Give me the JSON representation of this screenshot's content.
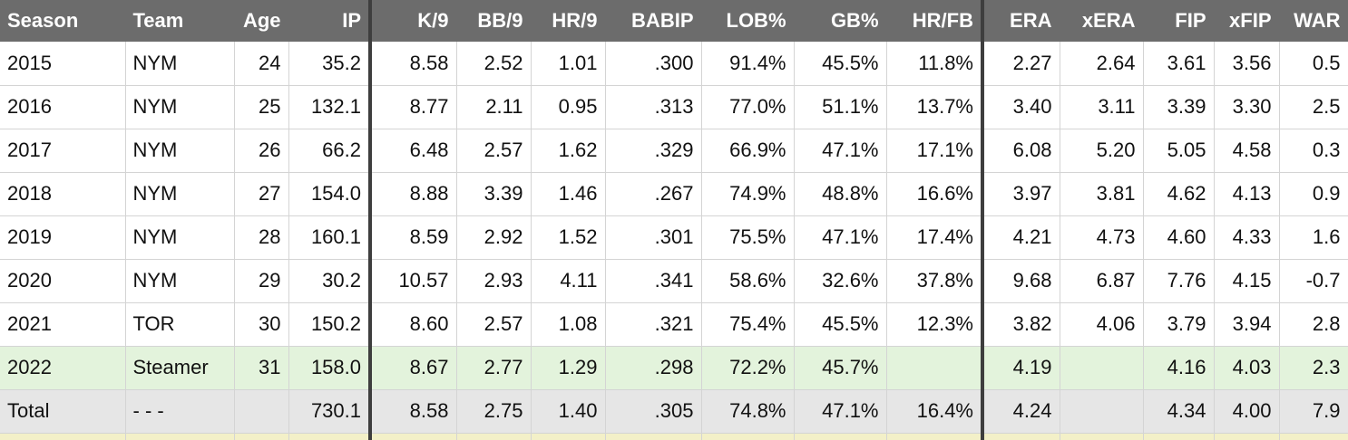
{
  "columns": [
    "Season",
    "Team",
    "Age",
    "IP",
    "K/9",
    "BB/9",
    "HR/9",
    "BABIP",
    "LOB%",
    "GB%",
    "HR/FB",
    "ERA",
    "xERA",
    "FIP",
    "xFIP",
    "WAR"
  ],
  "rows": [
    [
      "2015",
      "NYM",
      "24",
      "35.2",
      "8.58",
      "2.52",
      "1.01",
      ".300",
      "91.4%",
      "45.5%",
      "11.8%",
      "2.27",
      "2.64",
      "3.61",
      "3.56",
      "0.5"
    ],
    [
      "2016",
      "NYM",
      "25",
      "132.1",
      "8.77",
      "2.11",
      "0.95",
      ".313",
      "77.0%",
      "51.1%",
      "13.7%",
      "3.40",
      "3.11",
      "3.39",
      "3.30",
      "2.5"
    ],
    [
      "2017",
      "NYM",
      "26",
      "66.2",
      "6.48",
      "2.57",
      "1.62",
      ".329",
      "66.9%",
      "47.1%",
      "17.1%",
      "6.08",
      "5.20",
      "5.05",
      "4.58",
      "0.3"
    ],
    [
      "2018",
      "NYM",
      "27",
      "154.0",
      "8.88",
      "3.39",
      "1.46",
      ".267",
      "74.9%",
      "48.8%",
      "16.6%",
      "3.97",
      "3.81",
      "4.62",
      "4.13",
      "0.9"
    ],
    [
      "2019",
      "NYM",
      "28",
      "160.1",
      "8.59",
      "2.92",
      "1.52",
      ".301",
      "75.5%",
      "47.1%",
      "17.4%",
      "4.21",
      "4.73",
      "4.60",
      "4.33",
      "1.6"
    ],
    [
      "2020",
      "NYM",
      "29",
      "30.2",
      "10.57",
      "2.93",
      "4.11",
      ".341",
      "58.6%",
      "32.6%",
      "37.8%",
      "9.68",
      "6.87",
      "7.76",
      "4.15",
      "-0.7"
    ],
    [
      "2021",
      "TOR",
      "30",
      "150.2",
      "8.60",
      "2.57",
      "1.08",
      ".321",
      "75.4%",
      "45.5%",
      "12.3%",
      "3.82",
      "4.06",
      "3.79",
      "3.94",
      "2.8"
    ]
  ],
  "projection": [
    "2022",
    "Steamer",
    "31",
    "158.0",
    "8.67",
    "2.77",
    "1.29",
    ".298",
    "72.2%",
    "45.7%",
    "",
    "4.19",
    "",
    "4.16",
    "4.03",
    "2.3"
  ],
  "total": [
    "Total",
    "- - -",
    "",
    "730.1",
    "8.58",
    "2.75",
    "1.40",
    ".305",
    "74.8%",
    "47.1%",
    "16.4%",
    "4.24",
    "",
    "4.34",
    "4.00",
    "7.9"
  ],
  "colors": {
    "header_bg": "#6c6c6c",
    "projection_bg": "#e3f3dc",
    "total_bg": "#e6e6e6",
    "divider": "#3e3e3e"
  }
}
